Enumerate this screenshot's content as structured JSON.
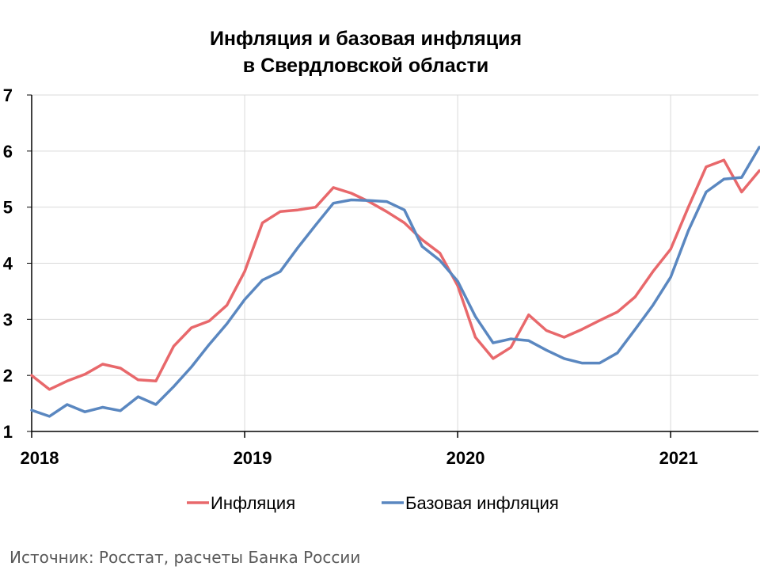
{
  "chart_data": {
    "type": "line",
    "title_lines": [
      "Инфляция и базовая инфляция",
      "в  Свердловской области"
    ],
    "x_tick_labels": [
      "2018",
      "2019",
      "2020",
      "2021"
    ],
    "x_tick_index": [
      0,
      12,
      24,
      36
    ],
    "ylim": [
      1,
      7
    ],
    "y_ticks": [
      1,
      2,
      3,
      4,
      5,
      6,
      7
    ],
    "grid": true,
    "legend_position": "bottom",
    "series": [
      {
        "name": "Инфляция",
        "color": "#e8686b",
        "values": [
          2.0,
          1.75,
          1.9,
          2.02,
          2.2,
          2.13,
          1.92,
          1.9,
          2.52,
          2.85,
          2.97,
          3.25,
          3.85,
          4.72,
          4.92,
          4.95,
          5.0,
          5.35,
          5.25,
          5.1,
          4.92,
          4.72,
          4.42,
          4.18,
          3.6,
          2.68,
          2.3,
          2.5,
          3.08,
          2.8,
          2.68,
          2.82,
          2.98,
          3.13,
          3.4,
          3.85,
          4.25,
          5.0,
          5.72,
          5.84,
          5.27,
          5.65
        ]
      },
      {
        "name": "Базовая инфляция",
        "color": "#5a87c0",
        "values": [
          1.38,
          1.27,
          1.48,
          1.35,
          1.43,
          1.37,
          1.62,
          1.48,
          1.8,
          2.15,
          2.55,
          2.92,
          3.35,
          3.7,
          3.85,
          4.28,
          4.68,
          5.07,
          5.13,
          5.12,
          5.1,
          4.95,
          4.3,
          4.05,
          3.68,
          3.05,
          2.58,
          2.65,
          2.62,
          2.45,
          2.3,
          2.22,
          2.22,
          2.4,
          2.82,
          3.25,
          3.75,
          4.58,
          5.27,
          5.5,
          5.53,
          6.07
        ]
      }
    ]
  },
  "source": "Источник: Росстат, расчеты Банка России"
}
